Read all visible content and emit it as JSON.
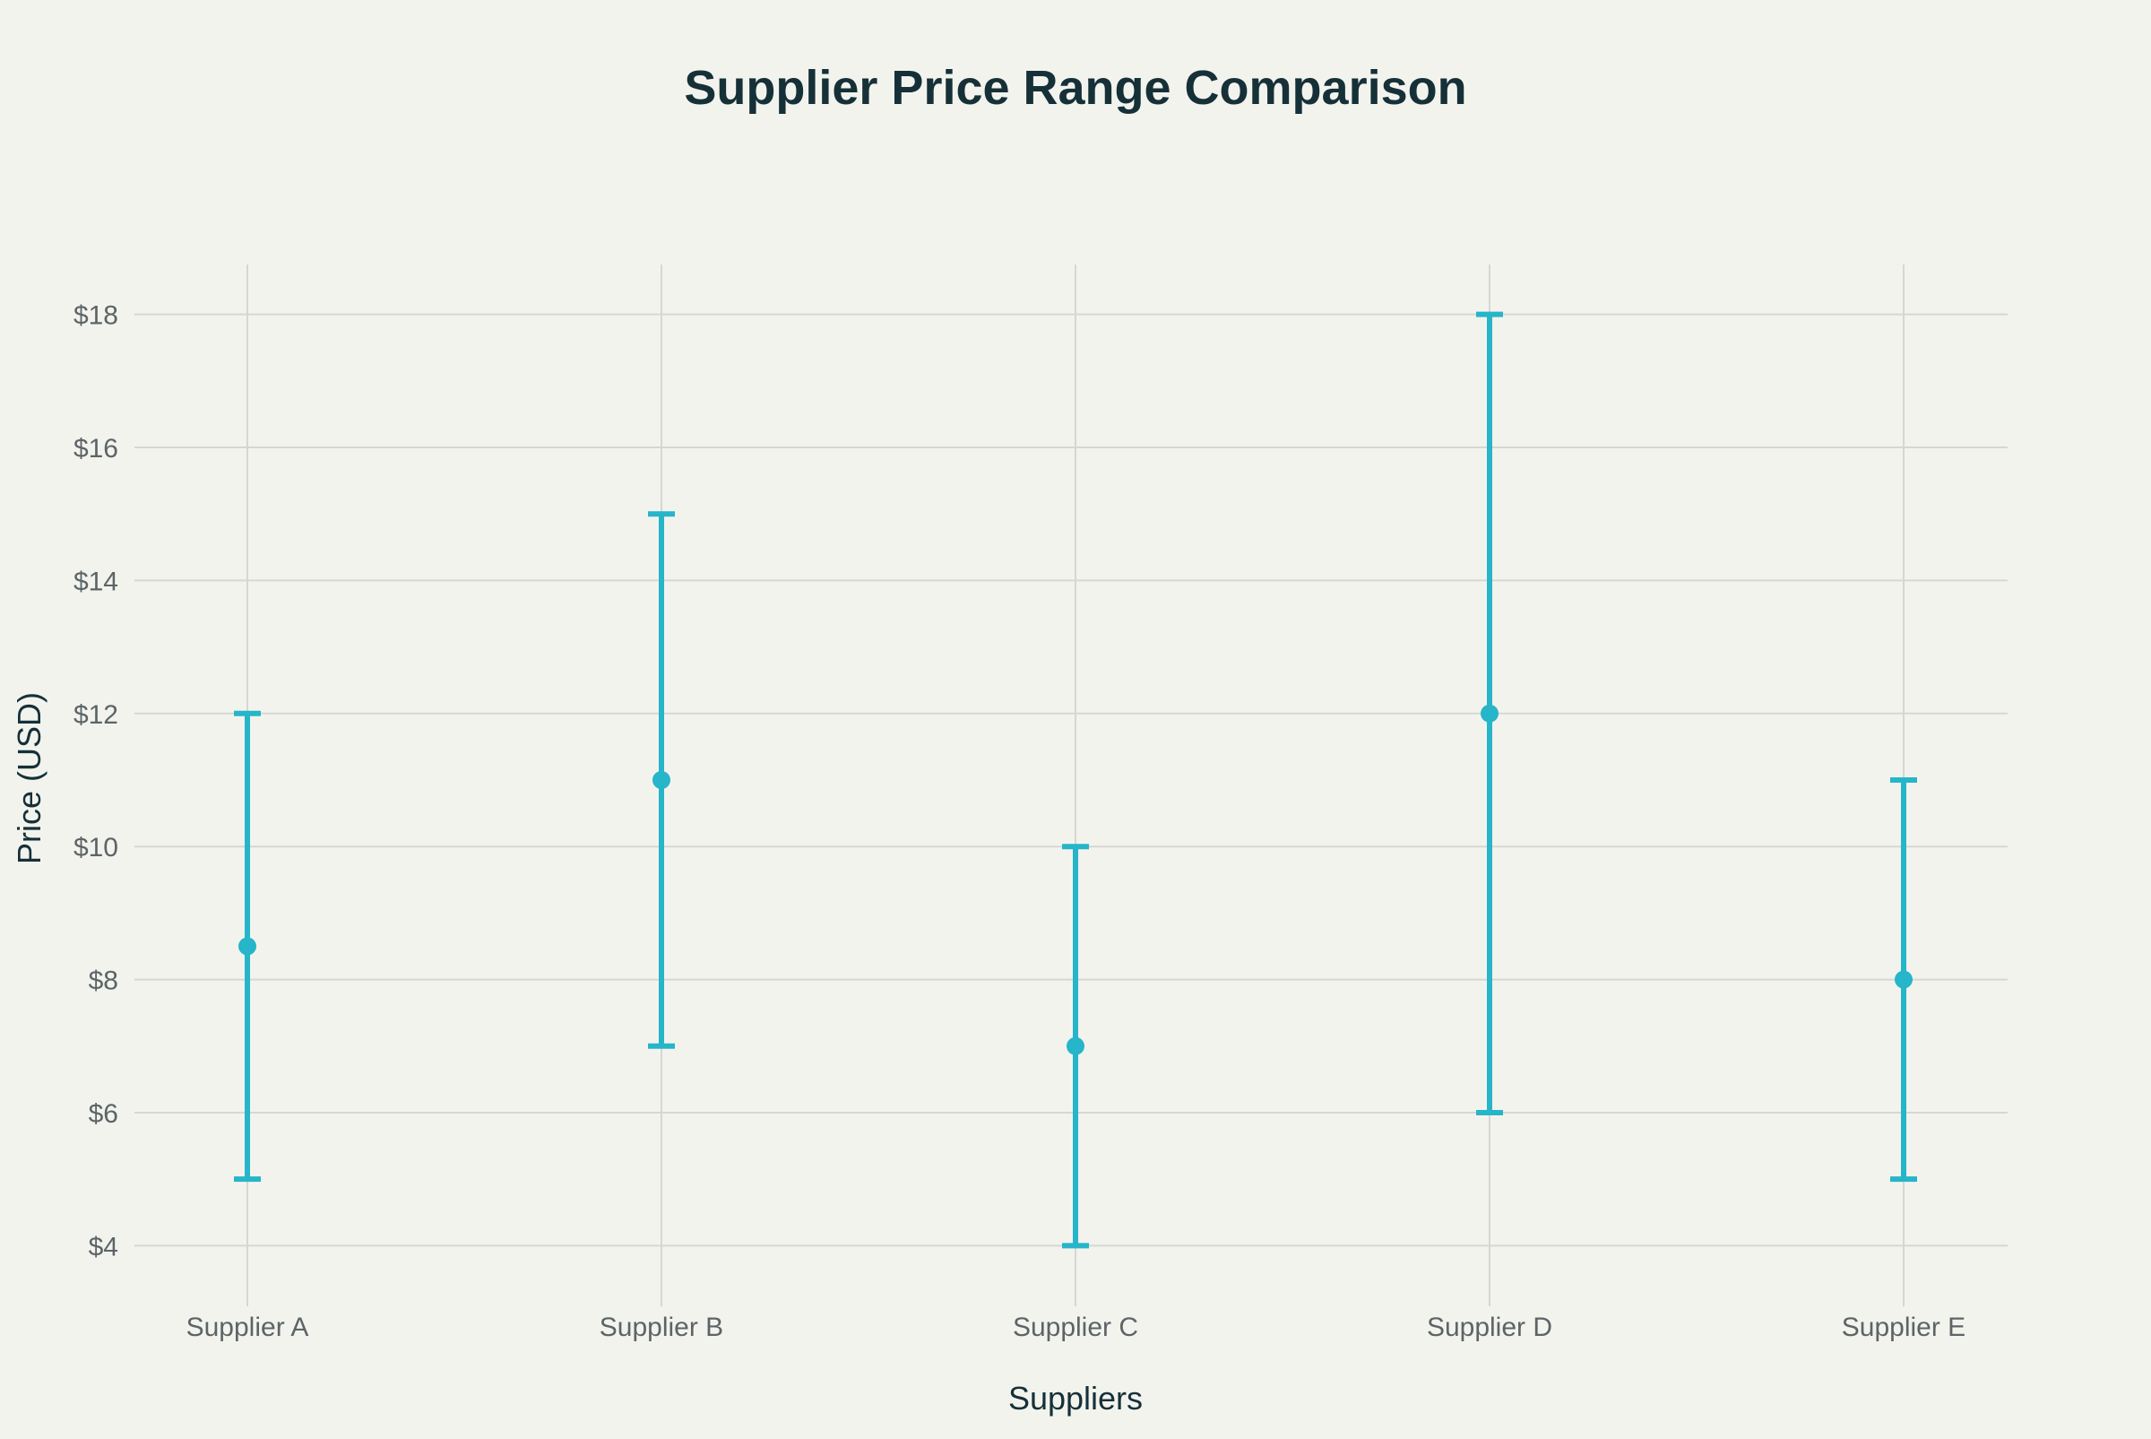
{
  "colors": {
    "background": "#f3f3ee",
    "series": "#26b5c9",
    "grid": "#d6d6d3",
    "title": "#163038",
    "tick": "#5c6466"
  },
  "chart_data": {
    "type": "scatter",
    "title": "Supplier Price Range Comparison",
    "xlabel": "Suppliers",
    "ylabel": "Price (USD)",
    "categories": [
      "Supplier A",
      "Supplier B",
      "Supplier C",
      "Supplier D",
      "Supplier E"
    ],
    "series": [
      {
        "values": [
          8.5,
          11,
          7,
          12,
          8
        ],
        "low": [
          5,
          7,
          4,
          6,
          5
        ],
        "high": [
          12,
          15,
          10,
          18,
          11
        ]
      }
    ],
    "yticks": [
      4,
      6,
      8,
      10,
      12,
      14,
      16,
      18
    ],
    "ytick_labels": [
      "$4",
      "$6",
      "$8",
      "$10",
      "$12",
      "$14",
      "$16",
      "$18"
    ],
    "ylim": [
      3.25,
      18.75
    ],
    "grid": true,
    "legend": "none"
  }
}
